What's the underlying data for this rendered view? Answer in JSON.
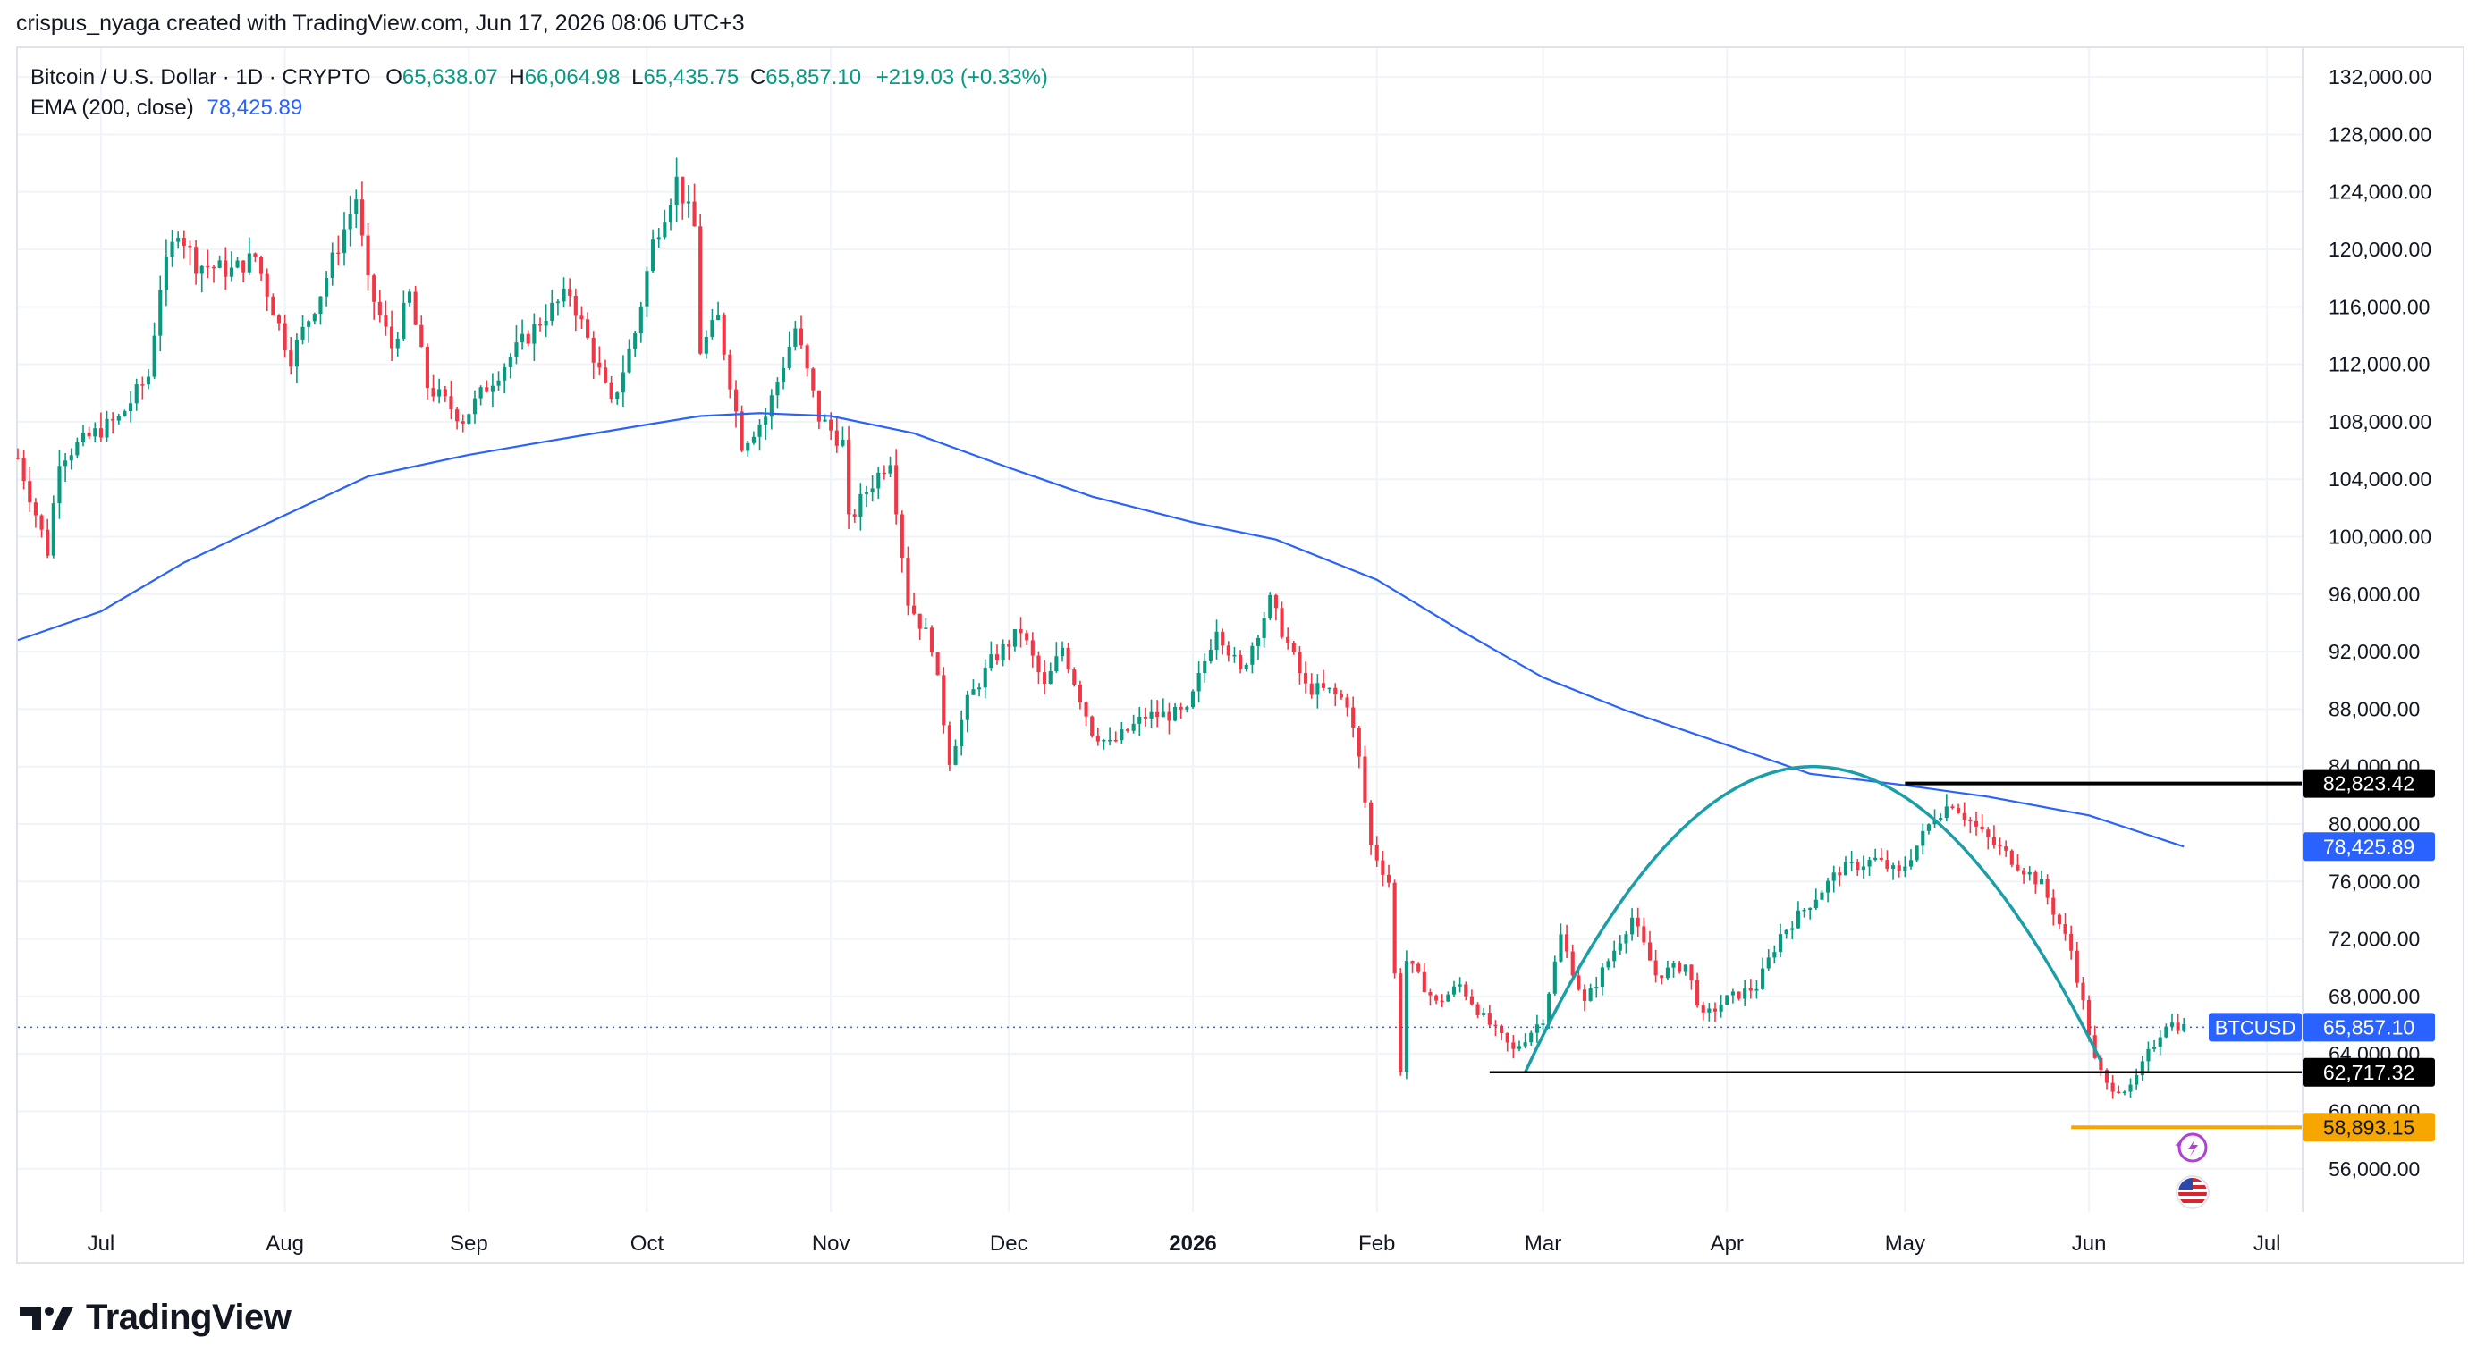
{
  "credit": "crispus_nyaga created with TradingView.com, Jun 17, 2026 08:06 UTC+3",
  "legend": {
    "symbol": "Bitcoin / U.S. Dollar · 1D · CRYPTO",
    "o_label": "O",
    "o_value": "65,638.07",
    "h_label": "H",
    "h_value": "66,064.98",
    "l_label": "L",
    "l_value": "65,435.75",
    "c_label": "C",
    "c_value": "65,857.10",
    "change": "+219.03 (+0.33%)",
    "ema_label": "EMA (200, close)",
    "ema_value": "78,425.89"
  },
  "brand": "TradingView",
  "icons": [
    "tradingview-logo-icon",
    "lightning-event-icon",
    "us-flag-icon"
  ],
  "colors": {
    "up": "#089981",
    "down": "#f23645",
    "ema": "#2962ff",
    "arc": "#1a9ea8",
    "level": "#000000",
    "support": "#f7a600",
    "grid": "#f0f3fa"
  },
  "chart_data": {
    "type": "candlestick",
    "title": "Bitcoin / U.S. Dollar · 1D · CRYPTO",
    "x_ticks": [
      "Jul",
      "Aug",
      "Sep",
      "Oct",
      "Nov",
      "Dec",
      "2026",
      "Feb",
      "Mar",
      "Apr",
      "May",
      "Jun",
      "Jul"
    ],
    "y_ticks": [
      "56,000.00",
      "60,000.00",
      "64,000.00",
      "68,000.00",
      "72,000.00",
      "76,000.00",
      "80,000.00",
      "84,000.00",
      "88,000.00",
      "92,000.00",
      "96,000.00",
      "100,000.00",
      "104,000.00",
      "108,000.00",
      "112,000.00",
      "116,000.00",
      "120,000.00",
      "124,000.00",
      "128,000.00",
      "132,000.00"
    ],
    "ylim": [
      53000,
      134000
    ],
    "xlim": [
      "2025-06-17",
      "2026-07-07"
    ],
    "series": [
      {
        "name": "BTCUSD",
        "close_path": [
          [
            "2025-06-17",
            105500
          ],
          [
            "2025-06-22",
            99000
          ],
          [
            "2025-06-24",
            105500
          ],
          [
            "2025-06-30",
            107200
          ],
          [
            "2025-07-04",
            108200
          ],
          [
            "2025-07-09",
            111200
          ],
          [
            "2025-07-11",
            117500
          ],
          [
            "2025-07-14",
            121500
          ],
          [
            "2025-07-17",
            119000
          ],
          [
            "2025-07-23",
            118500
          ],
          [
            "2025-07-27",
            119500
          ],
          [
            "2025-08-01",
            113500
          ],
          [
            "2025-08-02",
            112500
          ],
          [
            "2025-08-07",
            117000
          ],
          [
            "2025-08-13",
            123600
          ],
          [
            "2025-08-15",
            117500
          ],
          [
            "2025-08-19",
            113200
          ],
          [
            "2025-08-22",
            116800
          ],
          [
            "2025-08-25",
            110500
          ],
          [
            "2025-08-31",
            108200
          ],
          [
            "2025-09-05",
            111000
          ],
          [
            "2025-09-14",
            115500
          ],
          [
            "2025-09-18",
            117000
          ],
          [
            "2025-09-22",
            112600
          ],
          [
            "2025-09-25",
            109100
          ],
          [
            "2025-09-29",
            114200
          ],
          [
            "2025-10-02",
            120500
          ],
          [
            "2025-10-06",
            124800
          ],
          [
            "2025-10-09",
            121500
          ],
          [
            "2025-10-10",
            113000
          ],
          [
            "2025-10-13",
            115200
          ],
          [
            "2025-10-17",
            106500
          ],
          [
            "2025-10-21",
            108400
          ],
          [
            "2025-10-26",
            114500
          ],
          [
            "2025-10-30",
            108300
          ],
          [
            "2025-11-03",
            106500
          ],
          [
            "2025-11-04",
            101000
          ],
          [
            "2025-11-07",
            103200
          ],
          [
            "2025-11-11",
            105500
          ],
          [
            "2025-11-14",
            95500
          ],
          [
            "2025-11-18",
            92500
          ],
          [
            "2025-11-21",
            84500
          ],
          [
            "2025-11-24",
            88500
          ],
          [
            "2025-11-28",
            91300
          ],
          [
            "2025-12-03",
            93500
          ],
          [
            "2025-12-07",
            89500
          ],
          [
            "2025-12-10",
            92300
          ],
          [
            "2025-12-15",
            86500
          ],
          [
            "2025-12-18",
            85500
          ],
          [
            "2025-12-24",
            87500
          ],
          [
            "2025-12-31",
            87700
          ],
          [
            "2026-01-05",
            93800
          ],
          [
            "2026-01-09",
            90500
          ],
          [
            "2026-01-14",
            95500
          ],
          [
            "2026-01-20",
            89500
          ],
          [
            "2026-01-24",
            89200
          ],
          [
            "2026-01-27",
            88500
          ],
          [
            "2026-01-29",
            84500
          ],
          [
            "2026-01-31",
            78500
          ],
          [
            "2026-02-03",
            76000
          ],
          [
            "2026-02-05",
            63000
          ],
          [
            "2026-02-06",
            70500
          ],
          [
            "2026-02-11",
            67500
          ],
          [
            "2026-02-15",
            68800
          ],
          [
            "2026-02-19",
            66500
          ],
          [
            "2026-02-24",
            64200
          ],
          [
            "2026-03-01",
            66500
          ],
          [
            "2026-03-04",
            72200
          ],
          [
            "2026-03-08",
            67500
          ],
          [
            "2026-03-12",
            70500
          ],
          [
            "2026-03-16",
            73500
          ],
          [
            "2026-03-20",
            69500
          ],
          [
            "2026-03-25",
            70200
          ],
          [
            "2026-03-28",
            66500
          ],
          [
            "2026-04-01",
            67800
          ],
          [
            "2026-04-06",
            68700
          ],
          [
            "2026-04-10",
            72300
          ],
          [
            "2026-04-15",
            74500
          ],
          [
            "2026-04-20",
            76800
          ],
          [
            "2026-04-26",
            77500
          ],
          [
            "2026-04-30",
            76500
          ],
          [
            "2026-05-03",
            78500
          ],
          [
            "2026-05-06",
            80600
          ],
          [
            "2026-05-09",
            81500
          ],
          [
            "2026-05-14",
            79300
          ],
          [
            "2026-05-20",
            77200
          ],
          [
            "2026-05-24",
            75800
          ],
          [
            "2026-05-29",
            71200
          ],
          [
            "2026-05-31",
            67500
          ],
          [
            "2026-06-02",
            63500
          ],
          [
            "2026-06-04",
            61800
          ],
          [
            "2026-06-08",
            61500
          ],
          [
            "2026-06-11",
            64000
          ],
          [
            "2026-06-14",
            66200
          ],
          [
            "2026-06-17",
            65857.1
          ]
        ]
      },
      {
        "name": "EMA (200, close)",
        "points": [
          [
            "2025-06-17",
            92800
          ],
          [
            "2025-07-01",
            94800
          ],
          [
            "2025-07-15",
            98200
          ],
          [
            "2025-08-01",
            101500
          ],
          [
            "2025-08-15",
            104200
          ],
          [
            "2025-09-01",
            105700
          ],
          [
            "2025-09-15",
            106700
          ],
          [
            "2025-10-01",
            107800
          ],
          [
            "2025-10-10",
            108400
          ],
          [
            "2025-10-20",
            108600
          ],
          [
            "2025-11-01",
            108400
          ],
          [
            "2025-11-15",
            107200
          ],
          [
            "2025-12-01",
            104800
          ],
          [
            "2025-12-15",
            102800
          ],
          [
            "2026-01-01",
            101000
          ],
          [
            "2026-01-15",
            99800
          ],
          [
            "2026-02-01",
            97000
          ],
          [
            "2026-02-15",
            93500
          ],
          [
            "2026-03-01",
            90200
          ],
          [
            "2026-03-15",
            87900
          ],
          [
            "2026-04-01",
            85500
          ],
          [
            "2026-04-15",
            83500
          ],
          [
            "2026-05-01",
            82700
          ],
          [
            "2026-05-15",
            81900
          ],
          [
            "2026-06-01",
            80600
          ],
          [
            "2026-06-17",
            78425.89
          ]
        ]
      }
    ],
    "annotations": {
      "rounded_top_arc": {
        "start": [
          "2026-02-26",
          62717
        ],
        "peak": [
          "2026-04-15",
          84000
        ],
        "end": [
          "2026-06-03",
          63500
        ]
      },
      "levels": [
        {
          "name": "resistance",
          "value": 82823.42,
          "label": "82,823.42",
          "from": "2026-05-01"
        },
        {
          "name": "neckline",
          "value": 62717.32,
          "label": "62,717.32",
          "from": "2026-02-20"
        },
        {
          "name": "support",
          "value": 58893.15,
          "label": "58,893.15",
          "from": "2026-05-29"
        }
      ],
      "price_tag": {
        "symbol": "BTCUSD",
        "value": 65857.1,
        "label": "65,857.10"
      },
      "ema_tag": {
        "value": 78425.89,
        "label": "78,425.89"
      }
    }
  }
}
